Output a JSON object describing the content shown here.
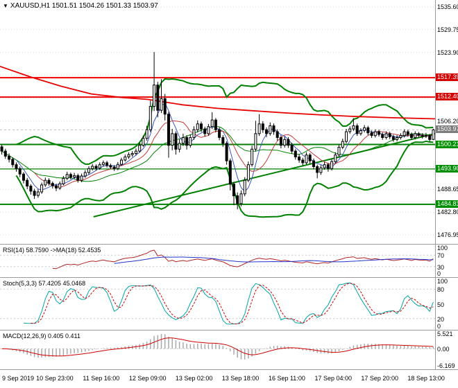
{
  "header": {
    "dropdown_icon": "▼",
    "symbol_ohlc": "XAUUSD,H1 1501.51 1504.26 1501.33 1503.97"
  },
  "chart_data": {
    "type": "candlestick",
    "symbol": "XAUUSD",
    "timeframe": "H1",
    "title": "XAUUSD,H1",
    "current_bar": {
      "open": 1501.51,
      "high": 1504.26,
      "low": 1501.33,
      "close": 1503.97
    },
    "price_range": {
      "top": 1537.38,
      "bottom": 1474.63
    },
    "grid_prices": [
      1535.6,
      1529.75,
      1523.9,
      1518.05,
      1512.2,
      1506.2,
      1500.35,
      1494.5,
      1488.65,
      1482.8,
      1476.95
    ],
    "price_ticks": [
      {
        "t": "1535.60",
        "v": 1535.6
      },
      {
        "t": "1529.75",
        "v": 1529.75
      },
      {
        "t": "1523.90",
        "v": 1523.9
      },
      {
        "t": "1506.20",
        "v": 1506.2
      },
      {
        "t": "1488.65",
        "v": 1488.65
      },
      {
        "t": "1482.80",
        "v": 1482.8
      },
      {
        "t": "1476.95",
        "v": 1476.95
      }
    ],
    "price_badges": [
      {
        "t": "1517.39",
        "v": 1517.39,
        "bg": "#d40000"
      },
      {
        "t": "1512.40",
        "v": 1512.4,
        "bg": "#d40000"
      },
      {
        "t": "1503.97",
        "v": 1503.97,
        "bg": "#7d7d7d"
      },
      {
        "t": "1500.21",
        "v": 1500.21,
        "bg": "#008f00"
      },
      {
        "t": "1493.90",
        "v": 1493.9,
        "bg": "#008f00"
      },
      {
        "t": "1484.81",
        "v": 1484.81,
        "bg": "#008f00"
      }
    ],
    "levels": [
      {
        "v": 1517.39,
        "color": "#ee0000",
        "w": 2
      },
      {
        "v": 1512.4,
        "color": "#ee0000",
        "w": 2
      },
      {
        "v": 1500.21,
        "color": "#008000",
        "w": 2
      },
      {
        "v": 1493.9,
        "color": "#008000",
        "w": 1.2
      },
      {
        "v": 1484.81,
        "color": "#008000",
        "w": 2
      }
    ],
    "trendline": {
      "x1": 0.215,
      "p1": 1481.6,
      "x2": 1.0,
      "p2": 1503.0,
      "color": "#008000",
      "w": 2
    },
    "slow_ma": [
      [
        0,
        1520.3
      ],
      [
        0.07,
        1517.6
      ],
      [
        0.14,
        1515.2
      ],
      [
        0.21,
        1513.2
      ],
      [
        0.28,
        1512.3
      ],
      [
        0.34,
        1511.8
      ],
      [
        0.42,
        1510.4
      ],
      [
        0.5,
        1509.5
      ],
      [
        0.58,
        1508.9
      ],
      [
        0.66,
        1508.3
      ],
      [
        0.74,
        1507.8
      ],
      [
        0.82,
        1507.4
      ],
      [
        0.9,
        1507.1
      ],
      [
        1,
        1506.8
      ]
    ],
    "bollinger": {
      "period": 20,
      "deviation": 2.5,
      "color": "#008000"
    },
    "candles": [
      [
        1499.6,
        1500.2,
        1497.6,
        1498.5
      ],
      [
        1498.5,
        1499.1,
        1496.5,
        1497.2
      ],
      [
        1497.2,
        1497.9,
        1495.6,
        1496.4
      ],
      [
        1496.4,
        1496.9,
        1494.3,
        1495.0
      ],
      [
        1495.0,
        1495.6,
        1493.2,
        1494.0
      ],
      [
        1494.0,
        1494.5,
        1491.8,
        1492.6
      ],
      [
        1492.6,
        1493.1,
        1490.2,
        1491.0
      ],
      [
        1491.0,
        1491.6,
        1488.7,
        1489.5
      ],
      [
        1489.5,
        1490.0,
        1487.3,
        1488.2
      ],
      [
        1488.2,
        1488.8,
        1486.2,
        1487.1
      ],
      [
        1487.1,
        1488.7,
        1486.5,
        1488.0
      ],
      [
        1488.0,
        1490.4,
        1487.5,
        1489.8
      ],
      [
        1489.8,
        1491.7,
        1489.3,
        1491.0
      ],
      [
        1491.0,
        1491.5,
        1489.6,
        1490.2
      ],
      [
        1490.2,
        1490.7,
        1488.9,
        1489.6
      ],
      [
        1489.6,
        1490.1,
        1488.2,
        1489.0
      ],
      [
        1489.0,
        1490.7,
        1488.5,
        1490.1
      ],
      [
        1490.1,
        1492.1,
        1489.7,
        1491.5
      ],
      [
        1491.5,
        1493.2,
        1491.0,
        1492.5
      ],
      [
        1492.5,
        1493.0,
        1491.2,
        1491.8
      ],
      [
        1491.8,
        1492.9,
        1491.3,
        1492.2
      ],
      [
        1492.2,
        1492.7,
        1490.4,
        1491.0
      ],
      [
        1491.0,
        1492.7,
        1490.5,
        1492.1
      ],
      [
        1492.1,
        1493.6,
        1491.6,
        1493.0
      ],
      [
        1493.0,
        1494.6,
        1492.5,
        1494.0
      ],
      [
        1494.0,
        1495.2,
        1493.5,
        1494.6
      ],
      [
        1494.6,
        1495.1,
        1493.6,
        1494.1
      ],
      [
        1494.1,
        1495.6,
        1493.7,
        1495.0
      ],
      [
        1495.0,
        1496.1,
        1494.5,
        1495.5
      ],
      [
        1495.5,
        1496.0,
        1494.3,
        1494.8
      ],
      [
        1494.8,
        1495.3,
        1493.9,
        1494.4
      ],
      [
        1494.4,
        1494.9,
        1493.4,
        1494.0
      ],
      [
        1494.0,
        1495.7,
        1493.6,
        1495.1
      ],
      [
        1495.1,
        1496.8,
        1494.7,
        1496.2
      ],
      [
        1496.2,
        1497.6,
        1495.8,
        1497.0
      ],
      [
        1497.0,
        1498.2,
        1496.5,
        1497.6
      ],
      [
        1497.6,
        1498.5,
        1497.0,
        1497.9
      ],
      [
        1497.9,
        1499.2,
        1497.4,
        1498.5
      ],
      [
        1498.5,
        1500.7,
        1498.1,
        1500.0
      ],
      [
        1500.0,
        1502.5,
        1499.6,
        1501.8
      ],
      [
        1501.8,
        1505.0,
        1501.2,
        1504.0
      ],
      [
        1504.0,
        1511.5,
        1503.4,
        1510.0
      ],
      [
        1510.0,
        1524.0,
        1508.8,
        1515.5
      ],
      [
        1515.5,
        1516.3,
        1507.2,
        1509.0
      ],
      [
        1509.0,
        1517.0,
        1508.3,
        1512.0
      ],
      [
        1512.0,
        1513.2,
        1506.4,
        1508.0
      ],
      [
        1508.0,
        1508.6,
        1496.8,
        1500.0
      ],
      [
        1500.0,
        1504.2,
        1498.7,
        1503.0
      ],
      [
        1503.0,
        1503.6,
        1497.6,
        1499.0
      ],
      [
        1499.0,
        1501.6,
        1498.2,
        1500.5
      ],
      [
        1500.5,
        1503.0,
        1499.8,
        1502.0
      ],
      [
        1502.0,
        1502.6,
        1498.9,
        1500.0
      ],
      [
        1500.0,
        1502.8,
        1499.4,
        1502.0
      ],
      [
        1502.0,
        1504.9,
        1501.4,
        1504.0
      ],
      [
        1504.0,
        1506.4,
        1503.3,
        1505.5
      ],
      [
        1505.5,
        1506.1,
        1503.4,
        1504.2
      ],
      [
        1504.2,
        1504.8,
        1502.2,
        1503.0
      ],
      [
        1503.0,
        1505.5,
        1502.5,
        1504.8
      ],
      [
        1504.8,
        1508.5,
        1504.2,
        1506.5
      ],
      [
        1506.5,
        1507.0,
        1503.3,
        1504.0
      ],
      [
        1504.0,
        1504.6,
        1501.3,
        1502.0
      ],
      [
        1502.0,
        1502.6,
        1499.6,
        1500.5
      ],
      [
        1500.5,
        1501.0,
        1495.0,
        1496.0
      ],
      [
        1496.0,
        1496.6,
        1488.4,
        1490.0
      ],
      [
        1490.0,
        1490.6,
        1484.6,
        1487.0
      ],
      [
        1487.0,
        1487.9,
        1483.5,
        1485.0
      ],
      [
        1485.0,
        1488.4,
        1484.3,
        1487.5
      ],
      [
        1487.5,
        1491.8,
        1486.9,
        1491.0
      ],
      [
        1491.0,
        1495.8,
        1490.5,
        1495.0
      ],
      [
        1495.0,
        1499.9,
        1494.5,
        1499.0
      ],
      [
        1499.0,
        1506.3,
        1498.4,
        1503.0
      ],
      [
        1503.0,
        1508.0,
        1502.4,
        1505.5
      ],
      [
        1505.5,
        1506.2,
        1503.2,
        1504.0
      ],
      [
        1504.0,
        1504.6,
        1502.1,
        1503.0
      ],
      [
        1503.0,
        1505.9,
        1502.5,
        1505.0
      ],
      [
        1505.0,
        1505.6,
        1502.7,
        1503.5
      ],
      [
        1503.5,
        1504.1,
        1501.2,
        1502.0
      ],
      [
        1502.0,
        1502.6,
        1499.2,
        1500.0
      ],
      [
        1500.0,
        1502.3,
        1499.4,
        1501.5
      ],
      [
        1501.5,
        1502.1,
        1499.3,
        1500.0
      ],
      [
        1500.0,
        1500.6,
        1497.8,
        1498.5
      ],
      [
        1498.5,
        1499.0,
        1496.3,
        1497.0
      ],
      [
        1497.0,
        1497.7,
        1495.5,
        1496.2
      ],
      [
        1496.2,
        1496.8,
        1494.8,
        1495.5
      ],
      [
        1495.5,
        1498.2,
        1495.1,
        1497.5
      ],
      [
        1497.5,
        1498.0,
        1495.3,
        1496.0
      ],
      [
        1496.0,
        1496.6,
        1493.8,
        1494.5
      ],
      [
        1494.5,
        1495.0,
        1491.5,
        1493.0
      ],
      [
        1493.0,
        1494.9,
        1492.4,
        1494.2
      ],
      [
        1494.2,
        1495.7,
        1493.7,
        1495.0
      ],
      [
        1495.0,
        1495.5,
        1493.2,
        1494.0
      ],
      [
        1494.0,
        1496.4,
        1493.5,
        1495.8
      ],
      [
        1495.8,
        1498.2,
        1495.3,
        1497.5
      ],
      [
        1497.5,
        1500.2,
        1497.0,
        1499.5
      ],
      [
        1499.5,
        1501.7,
        1499.0,
        1501.0
      ],
      [
        1501.0,
        1504.2,
        1500.5,
        1503.5
      ],
      [
        1503.5,
        1504.9,
        1503.0,
        1504.2
      ],
      [
        1504.2,
        1507.0,
        1503.7,
        1505.0
      ],
      [
        1505.0,
        1505.6,
        1502.4,
        1503.0
      ],
      [
        1503.0,
        1504.4,
        1502.5,
        1503.8
      ],
      [
        1503.8,
        1505.2,
        1503.3,
        1504.5
      ],
      [
        1504.5,
        1505.0,
        1502.6,
        1503.2
      ],
      [
        1503.2,
        1503.8,
        1501.9,
        1502.5
      ],
      [
        1502.5,
        1504.1,
        1502.0,
        1503.5
      ],
      [
        1503.5,
        1504.0,
        1502.2,
        1502.8
      ],
      [
        1502.8,
        1503.3,
        1501.4,
        1502.0
      ],
      [
        1502.0,
        1503.6,
        1501.5,
        1503.0
      ],
      [
        1503.0,
        1503.5,
        1501.6,
        1502.2
      ],
      [
        1502.2,
        1502.7,
        1500.9,
        1501.5
      ],
      [
        1501.5,
        1502.6,
        1501.0,
        1502.0
      ],
      [
        1502.0,
        1503.1,
        1501.5,
        1502.5
      ],
      [
        1502.5,
        1504.1,
        1502.0,
        1503.5
      ],
      [
        1503.5,
        1504.0,
        1502.2,
        1502.8
      ],
      [
        1502.8,
        1503.3,
        1501.4,
        1502.0
      ],
      [
        1502.0,
        1503.6,
        1501.5,
        1503.0
      ],
      [
        1503.0,
        1503.4,
        1502.0,
        1502.6
      ],
      [
        1502.6,
        1503.1,
        1501.7,
        1502.3
      ],
      [
        1502.3,
        1503.2,
        1501.9,
        1502.5
      ],
      [
        1502.5,
        1502.9,
        1501.0,
        1501.51
      ],
      [
        1501.51,
        1504.26,
        1501.33,
        1503.97
      ]
    ],
    "time_labels": [
      "9 Sep 2019",
      "10 Sep 23:00",
      "11 Sep 16:00",
      "12 Sep 09:00",
      "13 Sep 02:00",
      "13 Sep 18:00",
      "16 Sep 11:00",
      "17 Sep 04:00",
      "17 Sep 20:00",
      "18 Sep 13:00"
    ],
    "indicators": {
      "rsi": {
        "label": "RSI(14) 58.7590  ->MA(18) 52.4535",
        "period": 14,
        "ma_period": 18,
        "value": 58.759,
        "ma_value": 52.4535,
        "levels": [
          70,
          30
        ],
        "axis": [
          {
            "t": "100",
            "v": 100
          },
          {
            "t": "70",
            "v": 70
          },
          {
            "t": "30",
            "v": 30
          },
          {
            "t": "0",
            "v": 0
          }
        ],
        "line_color": "#b22222",
        "ma_color": "#2233cc"
      },
      "stoch": {
        "label": "Stoch(5,3,3) 57.4205 45.0468",
        "k_period": 5,
        "d_period": 3,
        "slowing": 3,
        "value_k": 57.4205,
        "value_d": 45.0468,
        "levels": [
          80,
          20
        ],
        "axis": [
          {
            "t": "100",
            "v": 100
          },
          {
            "t": "80",
            "v": 80
          },
          {
            "t": "50",
            "v": 50
          },
          {
            "t": "20",
            "v": 20
          },
          {
            "t": "0",
            "v": 0
          }
        ],
        "k_color": "#00a5a5",
        "d_color": "#cc0000"
      },
      "macd": {
        "label": "MACD(12,26,9) 0.405 0.411",
        "fast": 12,
        "slow": 26,
        "signal": 9,
        "value": 0.405,
        "signal_value": 0.411,
        "range": {
          "max": 5.521,
          "min": -6.169
        },
        "axis": [
          {
            "t": "5.521",
            "v": 5.521
          },
          {
            "t": "0.00",
            "v": 0
          },
          {
            "t": "-6.169",
            "v": -6.169
          }
        ],
        "hist_color": "#a8a8a8",
        "signal_color": "#cc0000"
      }
    }
  }
}
